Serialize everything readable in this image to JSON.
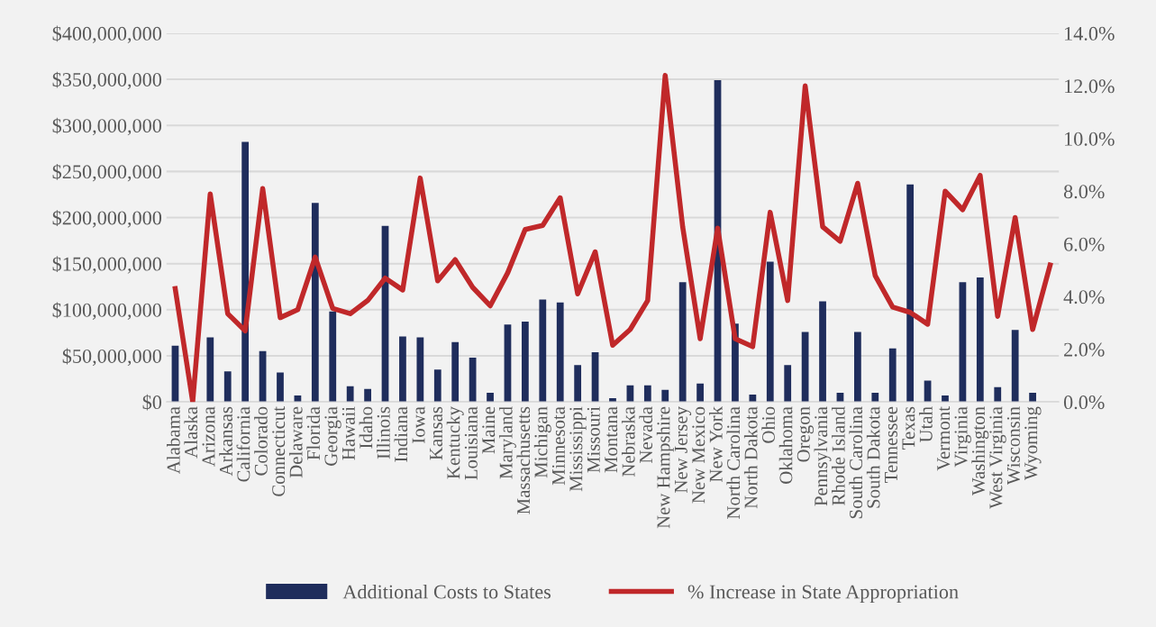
{
  "chart_data": {
    "type": "bar",
    "categories": [
      "Alabama",
      "Alaska",
      "Arizona",
      "Arkansas",
      "California",
      "Colorado",
      "Connecticut",
      "Delaware",
      "Florida",
      "Georgia",
      "Hawaii",
      "Idaho",
      "Illinois",
      "Indiana",
      "Iowa",
      "Kansas",
      "Kentucky",
      "Louisiana",
      "Maine",
      "Maryland",
      "Massachusetts",
      "Michigan",
      "Minnesota",
      "Mississippi",
      "Missouri",
      "Montana",
      "Nebraska",
      "Nevada",
      "New Hampshire",
      "New Jersey",
      "New Mexico",
      "New York",
      "North Carolina",
      "North Dakota",
      "Ohio",
      "Oklahoma",
      "Oregon",
      "Pennsylvania",
      "Rhode Island",
      "South Carolina",
      "South Dakota",
      "Tennessee",
      "Texas",
      "Utah",
      "Vermont",
      "Virginia",
      "Washington",
      "West Virginia",
      "Wisconsin",
      "Wyoming",
      null
    ],
    "series": [
      {
        "name": "Additional Costs to States",
        "color": "#1f2d5c",
        "values": [
          61000000,
          0,
          70000000,
          33000000,
          282000000,
          55000000,
          32000000,
          7000000,
          216000000,
          98000000,
          17000000,
          14000000,
          191000000,
          71000000,
          70000000,
          35000000,
          65000000,
          48000000,
          10000000,
          84000000,
          87000000,
          111000000,
          108000000,
          40000000,
          54000000,
          4000000,
          18000000,
          18000000,
          13000000,
          130000000,
          20000000,
          349000000,
          85000000,
          8000000,
          152000000,
          40000000,
          76000000,
          109000000,
          10000000,
          76000000,
          10000000,
          58000000,
          236000000,
          23000000,
          7000000,
          130000000,
          135000000,
          16000000,
          78000000,
          10000000,
          null
        ]
      },
      {
        "name": "% Increase in State Appropriation",
        "type": "line",
        "axis": "y2",
        "color": "#c0282a",
        "values": [
          4.3,
          0.0,
          7.9,
          3.35,
          2.7,
          8.1,
          3.2,
          3.5,
          5.5,
          3.55,
          3.35,
          3.85,
          4.7,
          4.25,
          8.5,
          4.6,
          5.4,
          4.35,
          3.65,
          4.9,
          6.55,
          6.7,
          7.75,
          4.1,
          5.7,
          2.15,
          2.75,
          3.85,
          12.4,
          6.65,
          2.4,
          6.6,
          2.4,
          2.1,
          7.2,
          3.85,
          12.0,
          6.65,
          6.1,
          8.3,
          4.8,
          3.6,
          3.4,
          2.95,
          8.0,
          7.3,
          8.6,
          3.25,
          7.0,
          2.75,
          5.2
        ]
      }
    ],
    "ylim": [
      0,
      400000000
    ],
    "yticks": [
      {
        "value": 0,
        "label": "$0"
      },
      {
        "value": 50000000,
        "label": "$50,000,000"
      },
      {
        "value": 100000000,
        "label": "$100,000,000"
      },
      {
        "value": 150000000,
        "label": "$150,000,000"
      },
      {
        "value": 200000000,
        "label": "$200,000,000"
      },
      {
        "value": 250000000,
        "label": "$250,000,000"
      },
      {
        "value": 300000000,
        "label": "$300,000,000"
      },
      {
        "value": 350000000,
        "label": "$350,000,000"
      },
      {
        "value": 400000000,
        "label": "$400,000,000"
      }
    ],
    "y2lim": [
      0,
      14
    ],
    "y2ticks": [
      {
        "value": 0,
        "label": "0.0%"
      },
      {
        "value": 2,
        "label": "2.0%"
      },
      {
        "value": 4,
        "label": "4.0%"
      },
      {
        "value": 6,
        "label": "6.0%"
      },
      {
        "value": 8,
        "label": "8.0%"
      },
      {
        "value": 10,
        "label": "10.0%"
      },
      {
        "value": 12,
        "label": "12.0%"
      },
      {
        "value": 14,
        "label": "14.0%"
      }
    ],
    "grid": "y",
    "legend": "bottom"
  }
}
